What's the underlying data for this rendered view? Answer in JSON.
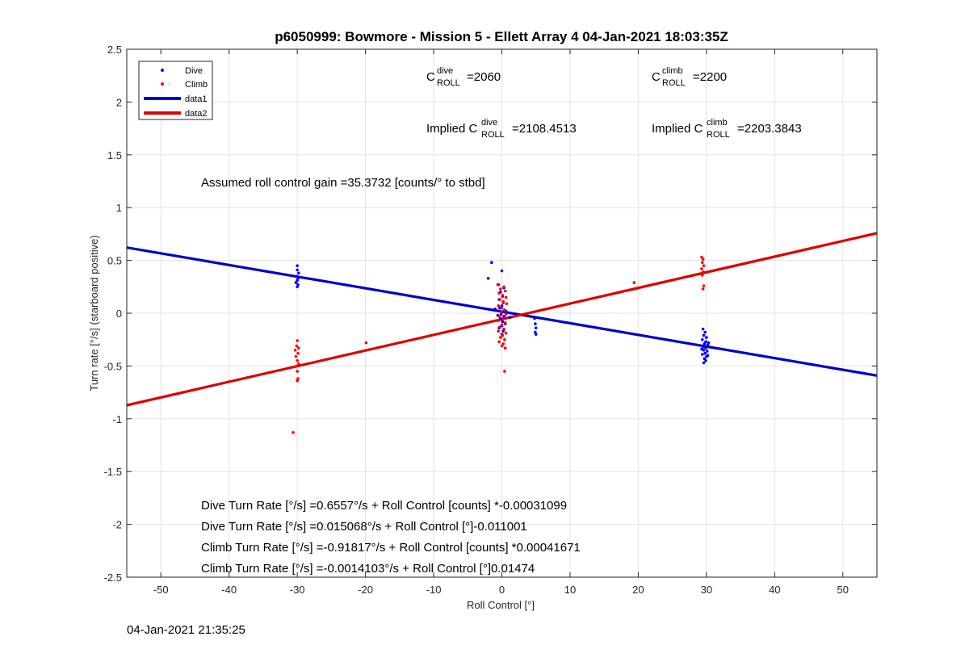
{
  "chart_data": {
    "type": "scatter",
    "title": "p6050999: Bowmore - Mission 5 - Ellett Array 4 04-Jan-2021 18:03:35Z",
    "xlabel": "Roll Control [°]",
    "ylabel": "Turn rate [°/s] (starboard positive)",
    "xlim": [
      -55,
      55
    ],
    "ylim": [
      -2.5,
      2.5
    ],
    "xticks": [
      -50,
      -40,
      -30,
      -20,
      -10,
      0,
      10,
      20,
      30,
      40,
      50
    ],
    "yticks": [
      -2.5,
      -2,
      -1.5,
      -1,
      -0.5,
      0,
      0.5,
      1,
      1.5,
      2,
      2.5
    ],
    "xtick_labels": [
      "-50",
      "-40",
      "-30",
      "-20",
      "-10",
      "0",
      "10",
      "20",
      "30",
      "40",
      "50"
    ],
    "ytick_labels": [
      "-2.5",
      "-2",
      "-1.5",
      "-1",
      "-0.5",
      "0",
      "0.5",
      "1",
      "1.5",
      "2",
      "2.5"
    ],
    "grid": true,
    "legend_position": "top-left",
    "legend": [
      "Dive",
      "Climb",
      "data1",
      "data2"
    ],
    "colors": {
      "dive": "#0000ff",
      "climb": "#ff0000",
      "data1": "#0000cc",
      "data2": "#dd0000"
    },
    "series": [
      {
        "name": "Dive",
        "kind": "points",
        "points": [
          [
            -30.0,
            0.45
          ],
          [
            -30.0,
            0.41
          ],
          [
            -29.8,
            0.38
          ],
          [
            -30.1,
            0.35
          ],
          [
            -29.9,
            0.33
          ],
          [
            -30.0,
            0.31
          ],
          [
            -30.2,
            0.29
          ],
          [
            -29.9,
            0.27
          ],
          [
            -30.0,
            0.25
          ],
          [
            -1.5,
            0.48
          ],
          [
            -2.0,
            0.33
          ],
          [
            0.0,
            0.4
          ],
          [
            -0.5,
            0.27
          ],
          [
            0.3,
            0.24
          ],
          [
            -0.2,
            0.2
          ],
          [
            0.1,
            0.16
          ],
          [
            -0.4,
            0.13
          ],
          [
            0.2,
            0.1
          ],
          [
            0.0,
            0.07
          ],
          [
            -0.3,
            0.05
          ],
          [
            0.4,
            0.03
          ],
          [
            0.0,
            0.01
          ],
          [
            -0.1,
            -0.01
          ],
          [
            0.3,
            -0.03
          ],
          [
            -0.2,
            -0.05
          ],
          [
            0.1,
            -0.08
          ],
          [
            0.5,
            -0.1
          ],
          [
            0.0,
            -0.12
          ],
          [
            -0.4,
            -0.14
          ],
          [
            0.2,
            -0.17
          ],
          [
            0.0,
            -0.2
          ],
          [
            -0.6,
            -0.02
          ],
          [
            0.6,
            0.02
          ],
          [
            1.2,
            -0.04
          ],
          [
            -1.0,
            0.04
          ],
          [
            4.8,
            -0.05
          ],
          [
            4.9,
            -0.1
          ],
          [
            5.0,
            -0.14
          ],
          [
            4.9,
            -0.18
          ],
          [
            5.0,
            -0.2
          ],
          [
            29.5,
            -0.15
          ],
          [
            29.8,
            -0.18
          ],
          [
            29.6,
            -0.21
          ],
          [
            30.0,
            -0.23
          ],
          [
            29.4,
            -0.25
          ],
          [
            29.9,
            -0.27
          ],
          [
            29.7,
            -0.29
          ],
          [
            30.2,
            -0.3
          ],
          [
            29.5,
            -0.32
          ],
          [
            29.9,
            -0.33
          ],
          [
            29.6,
            -0.35
          ],
          [
            30.1,
            -0.36
          ],
          [
            29.8,
            -0.38
          ],
          [
            29.4,
            -0.39
          ],
          [
            30.0,
            -0.41
          ],
          [
            29.7,
            -0.43
          ],
          [
            29.9,
            -0.45
          ],
          [
            29.6,
            -0.47
          ],
          [
            30.3,
            -0.28
          ],
          [
            29.3,
            -0.34
          ],
          [
            30.2,
            -0.4
          ]
        ]
      },
      {
        "name": "Climb",
        "kind": "points",
        "points": [
          [
            -30.0,
            -0.26
          ],
          [
            -30.1,
            -0.31
          ],
          [
            -29.8,
            -0.33
          ],
          [
            -30.3,
            -0.35
          ],
          [
            -29.9,
            -0.38
          ],
          [
            -30.2,
            -0.41
          ],
          [
            -30.0,
            -0.45
          ],
          [
            -29.8,
            -0.48
          ],
          [
            -30.1,
            -0.5
          ],
          [
            -30.0,
            -0.55
          ],
          [
            -29.9,
            -0.62
          ],
          [
            -30.0,
            -0.64
          ],
          [
            -30.6,
            -1.13
          ],
          [
            -19.9,
            -0.28
          ],
          [
            -0.6,
            0.27
          ],
          [
            0.3,
            0.25
          ],
          [
            -0.2,
            0.23
          ],
          [
            0.5,
            0.21
          ],
          [
            -0.4,
            0.19
          ],
          [
            0.1,
            0.17
          ],
          [
            0.6,
            0.15
          ],
          [
            -0.3,
            0.13
          ],
          [
            0.2,
            0.11
          ],
          [
            0.7,
            0.09
          ],
          [
            -0.5,
            0.07
          ],
          [
            0.0,
            0.05
          ],
          [
            0.4,
            0.03
          ],
          [
            -0.1,
            0.01
          ],
          [
            0.6,
            -0.01
          ],
          [
            -0.4,
            -0.03
          ],
          [
            0.2,
            -0.05
          ],
          [
            -0.6,
            -0.07
          ],
          [
            0.5,
            -0.09
          ],
          [
            0.0,
            -0.11
          ],
          [
            -0.3,
            -0.13
          ],
          [
            0.3,
            -0.15
          ],
          [
            -0.5,
            -0.17
          ],
          [
            0.6,
            -0.19
          ],
          [
            0.1,
            -0.21
          ],
          [
            -0.2,
            -0.23
          ],
          [
            0.4,
            -0.25
          ],
          [
            -0.4,
            -0.27
          ],
          [
            0.2,
            -0.29
          ],
          [
            0.0,
            -0.31
          ],
          [
            0.5,
            -0.33
          ],
          [
            0.4,
            -0.55
          ],
          [
            19.4,
            0.29
          ],
          [
            19.7,
            0.23
          ],
          [
            29.3,
            0.53
          ],
          [
            29.5,
            0.51
          ],
          [
            29.4,
            0.48
          ],
          [
            29.6,
            0.45
          ],
          [
            29.3,
            0.42
          ],
          [
            29.5,
            0.39
          ],
          [
            29.4,
            0.36
          ],
          [
            29.6,
            0.26
          ],
          [
            29.5,
            0.23
          ]
        ]
      },
      {
        "name": "data1",
        "kind": "line",
        "x": [
          -55,
          55
        ],
        "y": [
          0.6217,
          -0.5908
        ]
      },
      {
        "name": "data2",
        "kind": "line",
        "x": [
          -55,
          55
        ],
        "y": [
          -0.8719,
          0.7581
        ]
      }
    ],
    "annotations": {
      "c_roll_dive": {
        "prefix": "C",
        "sup": "dive",
        "sub": "ROLL",
        "value": "=2060"
      },
      "c_roll_climb": {
        "prefix": "C",
        "sup": "climb",
        "sub": "ROLL",
        "value": "=2200"
      },
      "implied_dive": {
        "prefix": "Implied C",
        "sup": "dive",
        "sub": "ROLL",
        "value": "=2108.4513"
      },
      "implied_climb": {
        "prefix": "Implied C",
        "sup": "climb",
        "sub": "ROLL",
        "value": "=2203.3843"
      },
      "gain": "Assumed roll control gain =35.3732 [counts/° to stbd]",
      "eq1": "Dive Turn Rate [°/s] =0.6557°/s + Roll Control [counts] *-0.00031099",
      "eq2": "Dive Turn Rate [°/s] =0.015068°/s + Roll Control [°]-0.011001",
      "eq3": "Climb Turn Rate [°/s] =-0.91817°/s + Roll Control [counts] *0.00041671",
      "eq4": "Climb Turn Rate [°/s] =-0.0014103°/s + Roll Control [°]0.01474"
    }
  },
  "footer_timestamp": "04-Jan-2021 21:35:25"
}
